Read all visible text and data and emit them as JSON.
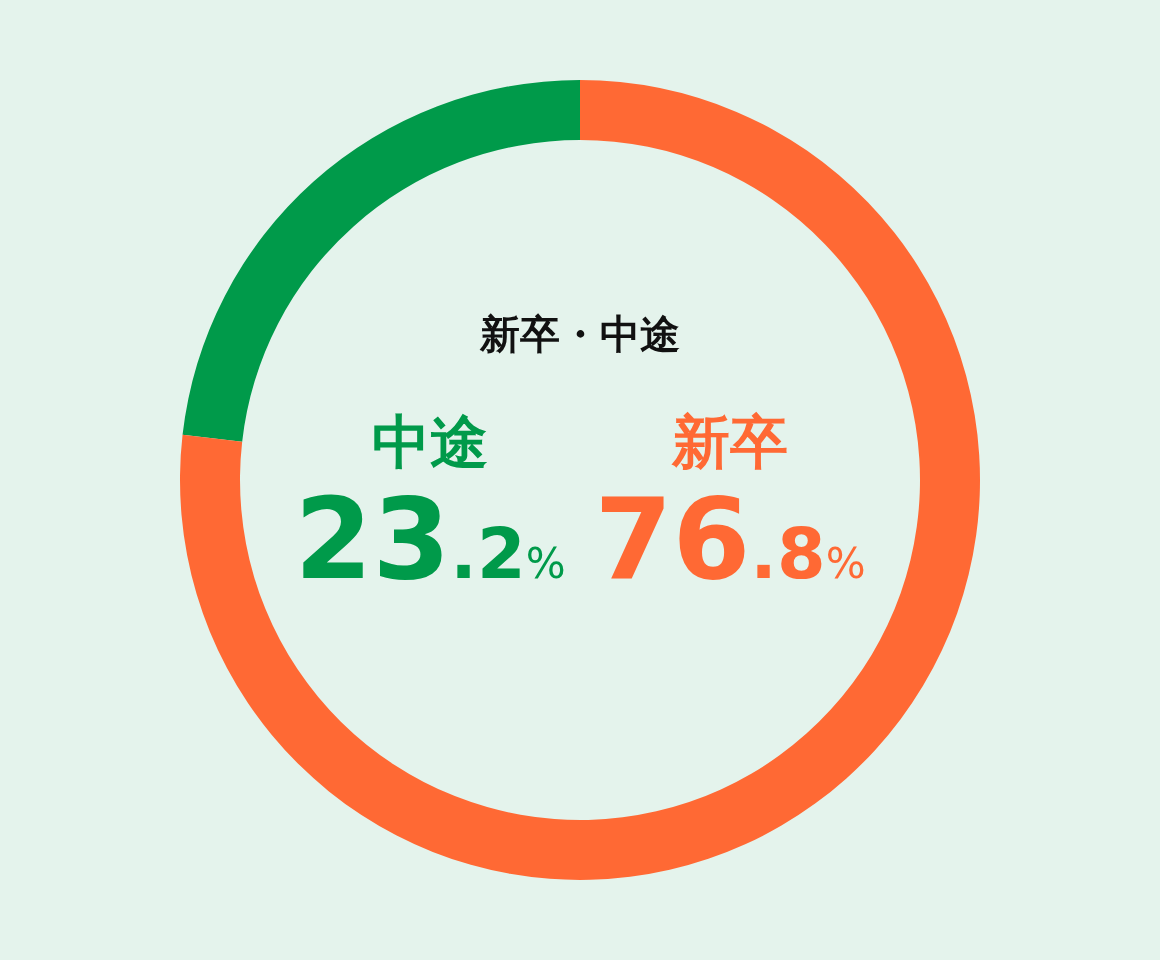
{
  "chart_data": {
    "type": "donut",
    "title": "新卒・中途",
    "categories": [
      "中途",
      "新卒"
    ],
    "values": [
      23.2,
      76.8
    ],
    "colors": [
      "#009a4a",
      "#ff6934"
    ],
    "value_labels": [
      "23.2%",
      "76.8%"
    ]
  }
}
